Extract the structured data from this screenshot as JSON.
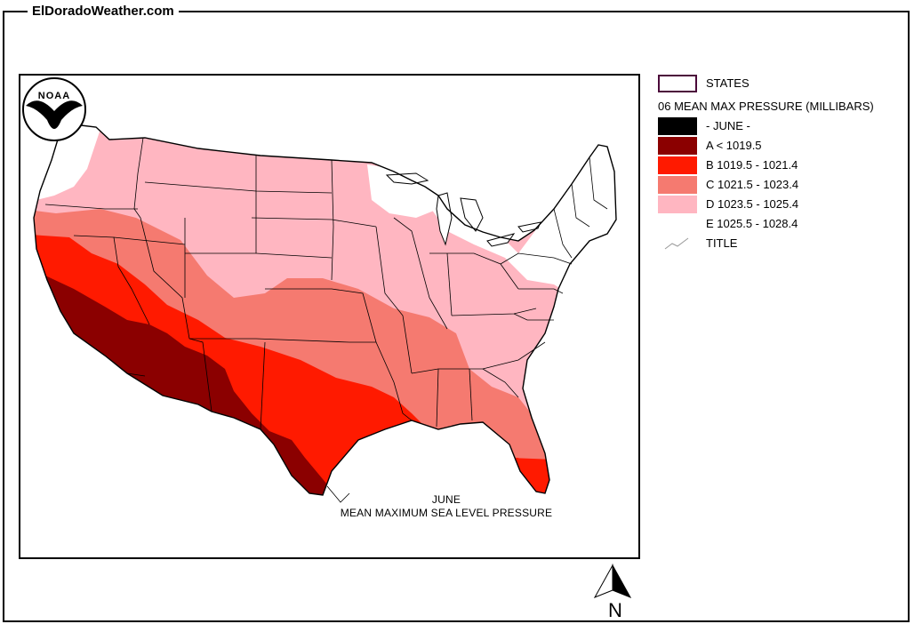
{
  "site": {
    "title": "ElDoradoWeather.com"
  },
  "map": {
    "caption_line1": "JUNE",
    "caption_line2": "MEAN MAXIMUM SEA LEVEL PRESSURE",
    "logo_text": "NOAA"
  },
  "legend": {
    "states_label": "STATES",
    "heading": "06 MEAN MAX PRESSURE (MILLIBARS)",
    "items": [
      {
        "label": "- JUNE -",
        "color": "#000000"
      },
      {
        "label": "A < 1019.5",
        "color": "#8b0000"
      },
      {
        "label": "B 1019.5 - 1021.4",
        "color": "#ff1a00"
      },
      {
        "label": "C 1021.5 - 1023.4",
        "color": "#f57a70"
      },
      {
        "label": "D 1023.5 - 1025.4",
        "color": "#ffb6c1"
      },
      {
        "label": "E 1025.5 - 1028.4",
        "color": "#ffffff"
      }
    ],
    "title_label": "TITLE"
  },
  "compass": {
    "label": "N"
  }
}
